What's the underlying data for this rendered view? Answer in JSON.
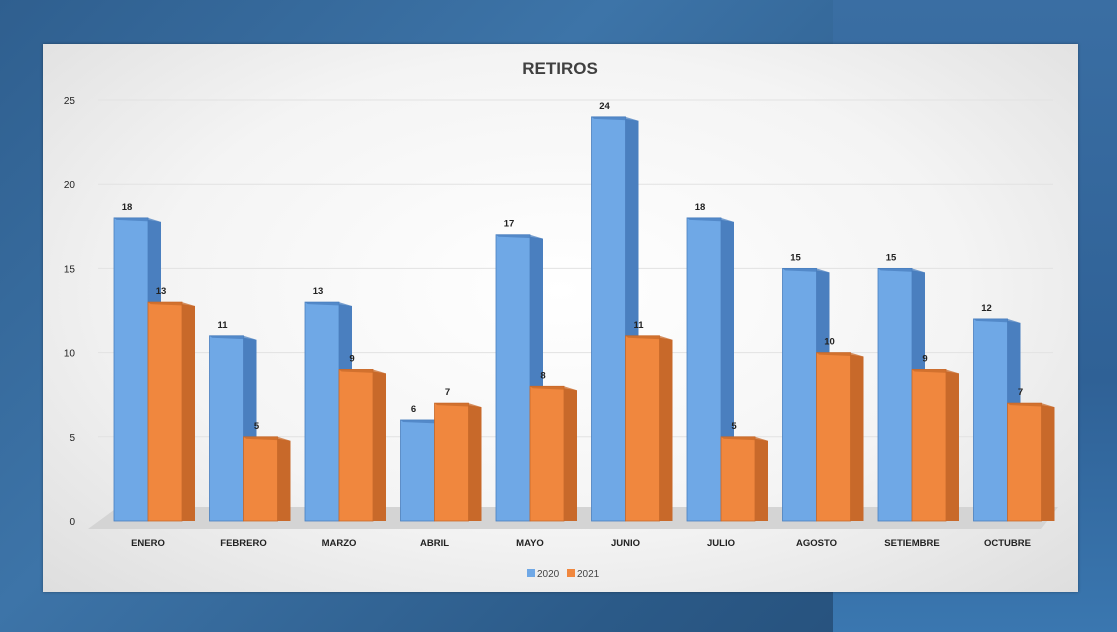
{
  "colors": {
    "series_2020": "#6fa8e6",
    "series_2020_side": "#4a7fbf",
    "series_2021": "#f0873e",
    "series_2021_side": "#c8692a"
  },
  "chart_data": {
    "type": "bar",
    "title": "RETIROS",
    "xlabel": "",
    "ylabel": "",
    "ylim": [
      0,
      25
    ],
    "yticks": [
      0,
      5,
      10,
      15,
      20,
      25
    ],
    "grid": true,
    "legend": "bottom",
    "categories": [
      "ENERO",
      "FEBRERO",
      "MARZO",
      "ABRIL",
      "MAYO",
      "JUNIO",
      "JULIO",
      "AGOSTO",
      "SETIEMBRE",
      "OCTUBRE"
    ],
    "series": [
      {
        "name": "2020",
        "values": [
          18,
          11,
          13,
          6,
          17,
          24,
          18,
          15,
          15,
          12
        ]
      },
      {
        "name": "2021",
        "values": [
          13,
          5,
          9,
          7,
          8,
          11,
          5,
          10,
          9,
          7
        ]
      }
    ]
  }
}
